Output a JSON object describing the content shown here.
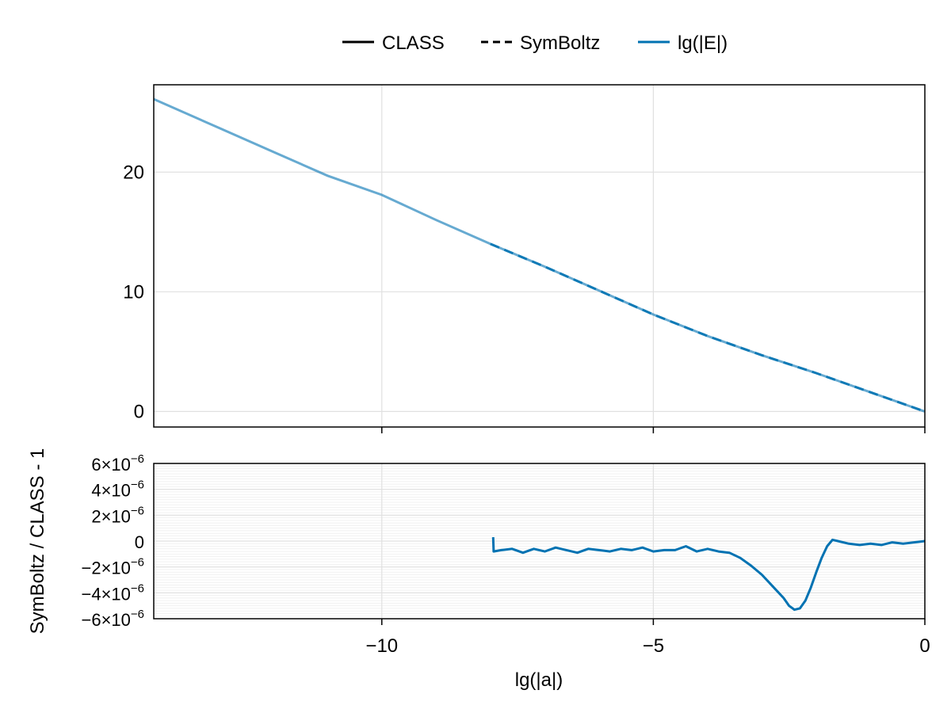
{
  "legend": {
    "placement": "top-center",
    "items": [
      {
        "label": "CLASS",
        "style": "solid",
        "color": "#000000"
      },
      {
        "label": "SymBoltz",
        "style": "dashed",
        "color": "#000000"
      },
      {
        "label": "lg(|E|)",
        "style": "solid",
        "color": "#0072b2"
      }
    ]
  },
  "xlabel": "lg(|a|)",
  "ylabel_bottom": "SymBoltz / CLASS - 1",
  "colors": {
    "series": "#0072b2",
    "grid": "#e0e0e0",
    "axis": "#000000"
  },
  "chart_data": [
    {
      "type": "line",
      "panel": "top",
      "xlim": [
        -14.2,
        0
      ],
      "ylim": [
        -1.3,
        27.3
      ],
      "xticks": [
        -10,
        -5,
        0
      ],
      "xtick_labels": [
        "",
        "",
        ""
      ],
      "yticks": [
        0,
        10,
        20
      ],
      "ytick_labels": [
        "0",
        "10",
        "20"
      ],
      "grid": true,
      "series": [
        {
          "name": "lg(|E|)",
          "source": "CLASS",
          "x": [
            -14.2,
            -13,
            -12,
            -11,
            -10,
            -9,
            -8,
            -7,
            -6,
            -5,
            -4,
            -3,
            -2,
            -1,
            0
          ],
          "y": [
            26.1,
            23.7,
            21.7,
            19.7,
            18.1,
            16.0,
            14.0,
            12.1,
            10.1,
            8.1,
            6.3,
            4.7,
            3.2,
            1.6,
            0.0
          ]
        },
        {
          "name": "lg(|E|)",
          "source": "SymBoltz",
          "x": [
            -8,
            -7,
            -6,
            -5,
            -4,
            -3,
            -2,
            -1,
            0
          ],
          "y": [
            14.0,
            12.1,
            10.1,
            8.1,
            6.3,
            4.7,
            3.2,
            1.6,
            0.0
          ]
        }
      ]
    },
    {
      "type": "line",
      "panel": "bottom",
      "xlim": [
        -14.2,
        0
      ],
      "ylim": [
        -6e-06,
        6e-06
      ],
      "xticks": [
        -10,
        -5,
        0
      ],
      "xtick_labels": [
        "−10",
        "−5",
        "0"
      ],
      "yticks": [
        6e-06,
        4e-06,
        2e-06,
        0,
        -2e-06,
        -4e-06,
        -6e-06
      ],
      "ytick_labels": [
        {
          "mantissa": "6×10",
          "exp": "−6"
        },
        {
          "mantissa": "4×10",
          "exp": "−6"
        },
        {
          "mantissa": "2×10",
          "exp": "−6"
        },
        {
          "mantissa": "0",
          "exp": ""
        },
        {
          "mantissa": "−2×10",
          "exp": "−6"
        },
        {
          "mantissa": "−4×10",
          "exp": "−6"
        },
        {
          "mantissa": "−6×10",
          "exp": "−6"
        }
      ],
      "grid": true,
      "series": [
        {
          "name": "lg(|E|)",
          "x": [
            -7.95,
            -7.94,
            -7.8,
            -7.6,
            -7.4,
            -7.2,
            -7.0,
            -6.8,
            -6.6,
            -6.4,
            -6.2,
            -6.0,
            -5.8,
            -5.6,
            -5.4,
            -5.2,
            -5.0,
            -4.8,
            -4.6,
            -4.4,
            -4.2,
            -4.0,
            -3.8,
            -3.6,
            -3.4,
            -3.2,
            -3.0,
            -2.8,
            -2.6,
            -2.5,
            -2.4,
            -2.3,
            -2.2,
            -2.1,
            -2.0,
            -1.9,
            -1.8,
            -1.7,
            -1.6,
            -1.4,
            -1.2,
            -1.0,
            -0.8,
            -0.6,
            -0.4,
            -0.2,
            0.0
          ],
          "y": [
            3e-07,
            -8e-07,
            -7e-07,
            -6e-07,
            -9e-07,
            -6e-07,
            -8e-07,
            -5e-07,
            -7e-07,
            -9e-07,
            -6e-07,
            -7e-07,
            -8e-07,
            -6e-07,
            -7e-07,
            -5e-07,
            -8e-07,
            -7e-07,
            -7e-07,
            -4e-07,
            -8e-07,
            -6e-07,
            -8e-07,
            -9e-07,
            -1.3e-06,
            -1.9e-06,
            -2.6e-06,
            -3.5e-06,
            -4.4e-06,
            -5e-06,
            -5.3e-06,
            -5.2e-06,
            -4.6e-06,
            -3.6e-06,
            -2.4e-06,
            -1.3e-06,
            -4e-07,
            1e-07,
            0,
            -2e-07,
            -3e-07,
            -2e-07,
            -3e-07,
            -1e-07,
            -2e-07,
            -1e-07,
            0
          ]
        }
      ]
    }
  ]
}
